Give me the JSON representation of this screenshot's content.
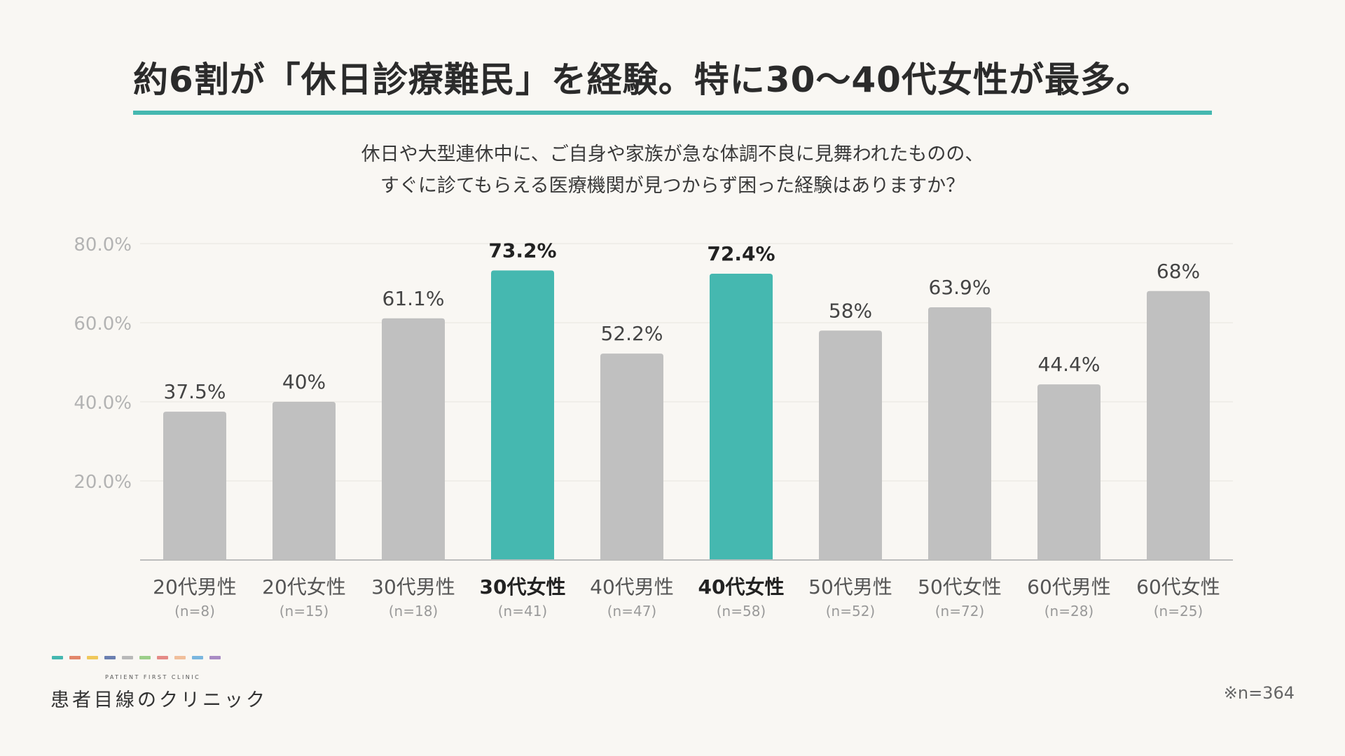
{
  "title": "約6割が「休日診療難民」を経験。特に30〜40代女性が最多。",
  "question_lines": [
    "休日や大型連休中に、ご自身や家族が急な体調不良に見舞われたものの、",
    "すぐに診てもらえる医療機関が見つからず困った経験はありますか？"
  ],
  "footnote": "※n=364",
  "brand": {
    "sub": "PATIENT FIRST CLINIC",
    "name": "患者目線のクリニック",
    "dash_colors": [
      "#45b8b0",
      "#e2866a",
      "#f0c85a",
      "#6b7fb0",
      "#b9b9b9",
      "#9ccf8a",
      "#e58a86",
      "#f1bf9b",
      "#7ab6df",
      "#a98cc4"
    ]
  },
  "colors": {
    "highlight": "#45b8b0",
    "default": "#c0c0c0"
  },
  "chart_data": {
    "type": "bar",
    "categories": [
      "20代男性",
      "20代女性",
      "30代男性",
      "30代女性",
      "40代男性",
      "40代女性",
      "50代男性",
      "50代女性",
      "60代男性",
      "60代女性"
    ],
    "sample_sizes": [
      "(n=8)",
      "(n=15)",
      "(n=18)",
      "(n=41)",
      "(n=47)",
      "(n=58)",
      "(n=52)",
      "(n=72)",
      "(n=28)",
      "(n=25)"
    ],
    "values": [
      37.5,
      40,
      61.1,
      73.2,
      52.2,
      72.4,
      58,
      63.9,
      44.4,
      68
    ],
    "value_labels": [
      "37.5%",
      "40%",
      "61.1%",
      "73.2%",
      "52.2%",
      "72.4%",
      "58%",
      "63.9%",
      "44.4%",
      "68%"
    ],
    "highlighted": [
      false,
      false,
      false,
      true,
      false,
      true,
      false,
      false,
      false,
      false
    ],
    "y_ticks": [
      20,
      40,
      60,
      80
    ],
    "y_tick_labels": [
      "20.0%",
      "40.0%",
      "60.0%",
      "80.0%"
    ],
    "ylim": [
      0,
      80
    ],
    "grid": true
  }
}
